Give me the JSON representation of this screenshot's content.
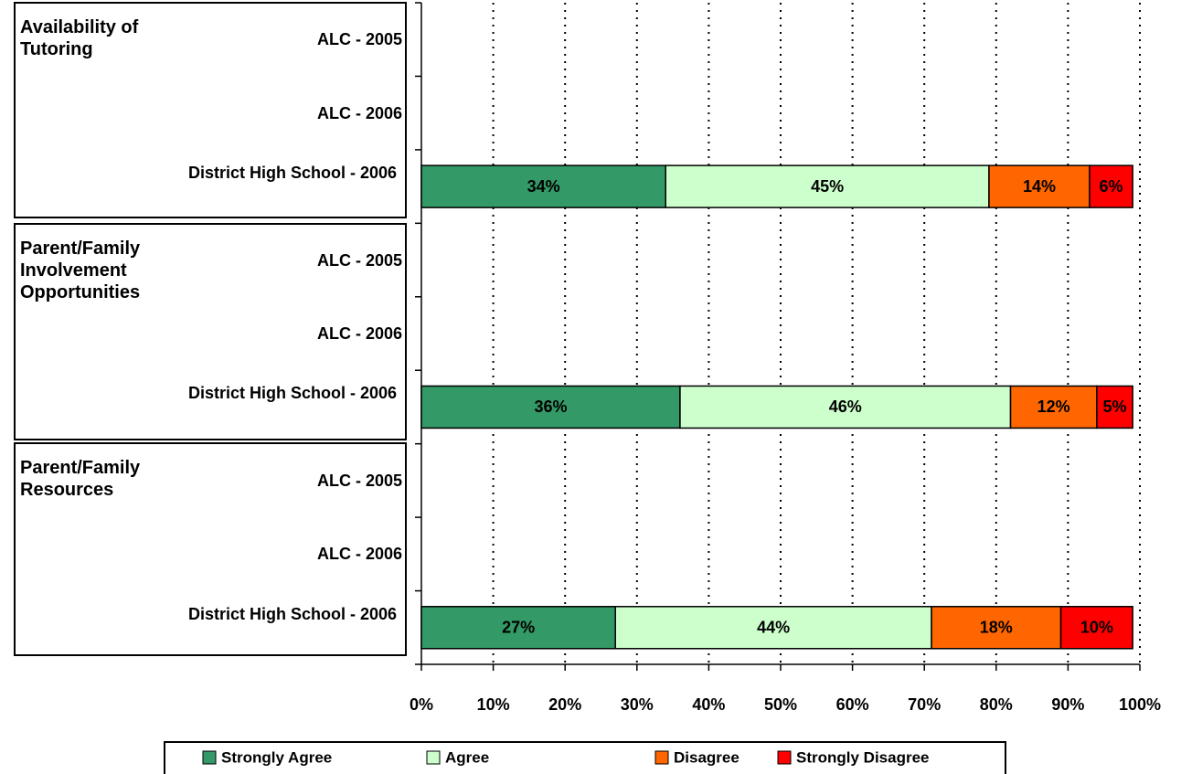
{
  "chart_data": {
    "type": "stacked_barh",
    "groups": [
      "Availability of Tutoring",
      "Parent/Family Involvement Opportunities",
      "Parent/Family Resources"
    ],
    "categories": [
      "ALC - 2005",
      "ALC - 2006",
      "District High School - 2006",
      "ALC - 2005",
      "ALC - 2006",
      "District High School - 2006",
      "ALC - 2005",
      "ALC - 2006",
      "District High School - 2006"
    ],
    "series": [
      {
        "name": "Strongly Agree",
        "color": "#339966",
        "values": [
          null,
          null,
          34,
          null,
          null,
          36,
          null,
          null,
          27
        ],
        "value_labels": [
          null,
          null,
          "34%",
          null,
          null,
          "36%",
          null,
          null,
          "27%"
        ]
      },
      {
        "name": "Agree",
        "color": "#ccffcc",
        "values": [
          null,
          null,
          45,
          null,
          null,
          46,
          null,
          null,
          44
        ],
        "value_labels": [
          null,
          null,
          "45%",
          null,
          null,
          "46%",
          null,
          null,
          "44%"
        ]
      },
      {
        "name": "Disagree",
        "color": "#ff6600",
        "values": [
          null,
          null,
          14,
          null,
          null,
          12,
          null,
          null,
          18
        ],
        "value_labels": [
          null,
          null,
          "14%",
          null,
          null,
          "12%",
          null,
          null,
          "18%"
        ]
      },
      {
        "name": "Strongly Disagree",
        "color": "#ff0000",
        "values": [
          null,
          null,
          6,
          null,
          null,
          5,
          null,
          null,
          10
        ],
        "value_labels": [
          null,
          null,
          "6%",
          null,
          null,
          "5%",
          null,
          null,
          "10%"
        ]
      }
    ],
    "xlim": [
      0,
      100
    ],
    "xticks": [
      {
        "value": 0,
        "label": "0%"
      },
      {
        "value": 10,
        "label": "10%"
      },
      {
        "value": 20,
        "label": "20%"
      },
      {
        "value": 30,
        "label": "30%"
      },
      {
        "value": 40,
        "label": "40%"
      },
      {
        "value": 50,
        "label": "50%"
      },
      {
        "value": 60,
        "label": "60%"
      },
      {
        "value": 70,
        "label": "70%"
      },
      {
        "value": 80,
        "label": "80%"
      },
      {
        "value": 90,
        "label": "90%"
      },
      {
        "value": 100,
        "label": "100%"
      }
    ],
    "grid": true,
    "legend": "bottom"
  }
}
